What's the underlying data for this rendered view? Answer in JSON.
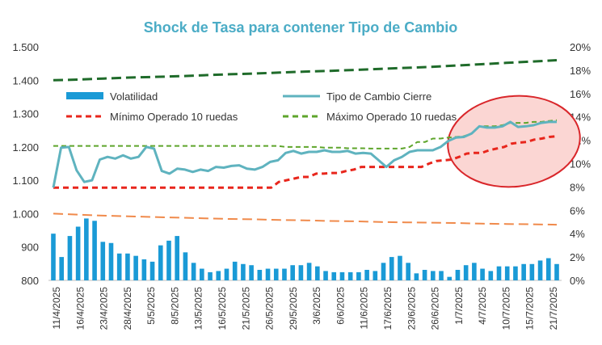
{
  "chart_data": {
    "type": "combo",
    "title": "Shock de Tasa para contener Tipo de Cambio",
    "title_color": "#4bacc6",
    "left_axis": {
      "ylim": [
        800,
        1500
      ],
      "ticks": [
        "800",
        "900",
        "1.000",
        "1.100",
        "1.200",
        "1.300",
        "1.400",
        "1.500"
      ]
    },
    "right_axis": {
      "ylim": [
        0,
        20
      ],
      "ticks": [
        "0%",
        "2%",
        "4%",
        "6%",
        "8%",
        "10%",
        "12%",
        "14%",
        "16%",
        "18%",
        "20%"
      ]
    },
    "x_tick_labels": [
      "11/4/2025",
      "16/4/2025",
      "23/4/2025",
      "28/4/2025",
      "5/5/2025",
      "8/5/2025",
      "13/5/2025",
      "16/5/2025",
      "21/5/2025",
      "26/5/2025",
      "29/5/2025",
      "3/6/2025",
      "6/6/2025",
      "11/6/2025",
      "17/6/2025",
      "23/6/2025",
      "26/6/2025",
      "1/7/2025",
      "4/7/2025",
      "10/7/2025",
      "15/7/2025",
      "21/7/2025"
    ],
    "legend": {
      "placement": "top-left",
      "items": [
        {
          "label": "Volatilidad",
          "color": "#1a9ad6",
          "kind": "bar"
        },
        {
          "label": "Tipo de Cambio Cierre",
          "color": "#5fb3bf",
          "kind": "line"
        },
        {
          "label": "Mínimo Operado 10 ruedas",
          "color": "#e8261c",
          "kind": "dash"
        },
        {
          "label": "Máximo Operado 10 ruedas",
          "color": "#5ea52b",
          "kind": "dash"
        }
      ]
    },
    "series": [
      {
        "name": "Volatilidad",
        "axis": "right",
        "color": "#1a9ad6",
        "values": [
          4.0,
          2.0,
          3.8,
          4.6,
          5.3,
          5.1,
          3.3,
          3.2,
          2.3,
          2.3,
          2.1,
          1.8,
          1.6,
          3.0,
          3.4,
          3.8,
          2.4,
          1.5,
          1.0,
          0.7,
          0.8,
          1.0,
          1.6,
          1.4,
          1.3,
          0.9,
          1.0,
          1.0,
          1.0,
          1.3,
          1.3,
          1.5,
          1.2,
          0.8,
          0.7,
          0.7,
          0.7,
          0.7,
          0.9,
          0.8,
          1.5,
          2.0,
          2.1,
          1.5,
          0.6,
          0.9,
          0.8,
          0.8,
          0.3,
          0.9,
          1.3,
          1.5,
          1.0,
          0.8,
          1.2,
          1.2,
          1.2,
          1.4,
          1.4,
          1.7,
          1.9,
          1.4
        ]
      },
      {
        "name": "Tipo de Cambio Cierre",
        "axis": "left",
        "color": "#5fb3bf",
        "values": [
          1078,
          1198,
          1200,
          1130,
          1095,
          1100,
          1162,
          1170,
          1165,
          1175,
          1165,
          1170,
          1200,
          1195,
          1128,
          1120,
          1135,
          1132,
          1125,
          1132,
          1128,
          1140,
          1138,
          1143,
          1145,
          1135,
          1132,
          1140,
          1155,
          1160,
          1182,
          1188,
          1180,
          1185,
          1185,
          1190,
          1185,
          1185,
          1188,
          1180,
          1182,
          1180,
          1160,
          1140,
          1160,
          1170,
          1185,
          1190,
          1190,
          1190,
          1200,
          1218,
          1228,
          1230,
          1240,
          1262,
          1258,
          1258,
          1262,
          1275,
          1260,
          1262,
          1265,
          1272,
          1275,
          1275
        ]
      },
      {
        "name": "Mínimo Operado 10 ruedas",
        "axis": "left",
        "color": "#e8261c",
        "values": [
          1078,
          1078,
          1078,
          1078,
          1078,
          1078,
          1078,
          1078,
          1078,
          1078,
          1078,
          1078,
          1078,
          1078,
          1078,
          1078,
          1078,
          1078,
          1078,
          1078,
          1078,
          1078,
          1078,
          1078,
          1078,
          1078,
          1078,
          1078,
          1078,
          1078,
          1095,
          1100,
          1105,
          1110,
          1110,
          1120,
          1120,
          1122,
          1122,
          1128,
          1132,
          1140,
          1140,
          1140,
          1140,
          1140,
          1140,
          1140,
          1140,
          1140,
          1150,
          1158,
          1160,
          1162,
          1170,
          1180,
          1182,
          1182,
          1190,
          1195,
          1200,
          1210,
          1213,
          1215,
          1222,
          1225,
          1230,
          1232
        ]
      },
      {
        "name": "Máximo Operado 10 ruedas",
        "axis": "left",
        "color": "#5ea52b",
        "values": [
          1203,
          1203,
          1203,
          1203,
          1203,
          1203,
          1203,
          1203,
          1203,
          1203,
          1203,
          1203,
          1203,
          1203,
          1203,
          1203,
          1203,
          1203,
          1203,
          1203,
          1203,
          1203,
          1203,
          1203,
          1203,
          1203,
          1203,
          1203,
          1203,
          1203,
          1200,
          1200,
          1200,
          1200,
          1200,
          1198,
          1198,
          1198,
          1196,
          1196,
          1196,
          1195,
          1195,
          1195,
          1195,
          1195,
          1200,
          1215,
          1215,
          1225,
          1225,
          1228,
          1230,
          1232,
          1240,
          1262,
          1262,
          1262,
          1265,
          1272,
          1272,
          1272,
          1275,
          1275,
          1278,
          1280
        ]
      },
      {
        "name": "Upper bound",
        "axis": "left",
        "color": "#1f6b2a",
        "values": [
          1400,
          1402,
          1405,
          1408,
          1410,
          1412,
          1415,
          1418,
          1420,
          1423,
          1426,
          1428,
          1431,
          1434,
          1437,
          1440,
          1444,
          1448,
          1452,
          1456,
          1460
        ]
      },
      {
        "name": "Lower bound",
        "axis": "left",
        "color": "#f08a4b",
        "values": [
          1000,
          997,
          994,
          992,
          990,
          988,
          986,
          984,
          983,
          981,
          980,
          978,
          977,
          975,
          974,
          973,
          972,
          970,
          969,
          968,
          967
        ]
      }
    ],
    "annotation": {
      "shape": "ellipse",
      "color": "#d9262a",
      "fill": "#fbd6d3"
    }
  }
}
